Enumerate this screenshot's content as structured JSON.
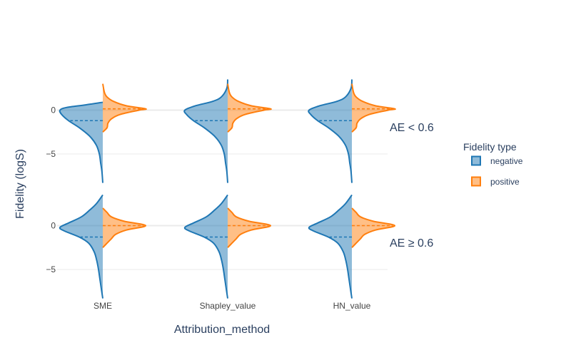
{
  "chart_data": {
    "type": "violin",
    "xlabel": "Attribution_method",
    "ylabel": "Fidelity (logS)",
    "categories": [
      "SME",
      "Shapley_value",
      "HN_value"
    ],
    "facets": [
      "AE < 0.6",
      "AE ≥ 0.6"
    ],
    "yticks": [
      0,
      -5
    ],
    "ylim": [
      -8.5,
      3.5
    ],
    "legend": {
      "title": "Fidelity type",
      "position": "right",
      "items": [
        {
          "name": "negative",
          "color": "#1f77b4",
          "side": "left"
        },
        {
          "name": "positive",
          "color": "#ff7f0e",
          "side": "right"
        }
      ]
    },
    "violins": [
      {
        "facet": "AE < 0.6",
        "category": "SME",
        "negative": {
          "mean": -1.2,
          "range": [
            -8.3,
            0.9
          ],
          "profile": [
            [
              -8.3,
              0.0
            ],
            [
              -7.0,
              0.02
            ],
            [
              -6.0,
              0.05
            ],
            [
              -5.0,
              0.08
            ],
            [
              -4.0,
              0.15
            ],
            [
              -3.0,
              0.3
            ],
            [
              -2.0,
              0.55
            ],
            [
              -1.2,
              0.8
            ],
            [
              -0.5,
              0.96
            ],
            [
              0.0,
              1.0
            ],
            [
              0.3,
              0.85
            ],
            [
              0.6,
              0.4
            ],
            [
              0.9,
              0.0
            ]
          ]
        },
        "positive": {
          "mean": 0.15,
          "range": [
            -2.5,
            3.0
          ],
          "profile": [
            [
              -2.5,
              0.0
            ],
            [
              -2.0,
              0.1
            ],
            [
              -1.5,
              0.12
            ],
            [
              -1.0,
              0.2
            ],
            [
              -0.5,
              0.4
            ],
            [
              0.0,
              0.85
            ],
            [
              0.15,
              1.0
            ],
            [
              0.5,
              0.55
            ],
            [
              1.0,
              0.25
            ],
            [
              1.5,
              0.1
            ],
            [
              2.0,
              0.04
            ],
            [
              3.0,
              0.0
            ]
          ]
        }
      },
      {
        "facet": "AE < 0.6",
        "category": "Shapley_value",
        "negative": {
          "mean": -1.2,
          "range": [
            -8.3,
            3.5
          ],
          "profile": [
            [
              -8.3,
              0.0
            ],
            [
              -7.0,
              0.02
            ],
            [
              -6.0,
              0.05
            ],
            [
              -5.0,
              0.08
            ],
            [
              -4.0,
              0.15
            ],
            [
              -3.0,
              0.3
            ],
            [
              -2.0,
              0.55
            ],
            [
              -1.2,
              0.8
            ],
            [
              -0.5,
              0.96
            ],
            [
              0.0,
              1.0
            ],
            [
              0.5,
              0.75
            ],
            [
              1.0,
              0.35
            ],
            [
              1.5,
              0.15
            ],
            [
              2.5,
              0.02
            ],
            [
              3.5,
              0.0
            ]
          ]
        },
        "positive": {
          "mean": 0.15,
          "range": [
            -2.5,
            3.0
          ],
          "profile": [
            [
              -2.5,
              0.0
            ],
            [
              -2.0,
              0.1
            ],
            [
              -1.5,
              0.12
            ],
            [
              -1.0,
              0.2
            ],
            [
              -0.5,
              0.4
            ],
            [
              0.0,
              0.85
            ],
            [
              0.15,
              1.0
            ],
            [
              0.5,
              0.55
            ],
            [
              1.0,
              0.25
            ],
            [
              1.5,
              0.1
            ],
            [
              2.0,
              0.04
            ],
            [
              3.0,
              0.0
            ]
          ]
        }
      },
      {
        "facet": "AE < 0.6",
        "category": "HN_value",
        "negative": {
          "mean": -1.2,
          "range": [
            -8.3,
            3.5
          ],
          "profile": [
            [
              -8.3,
              0.0
            ],
            [
              -7.0,
              0.02
            ],
            [
              -6.0,
              0.05
            ],
            [
              -5.0,
              0.08
            ],
            [
              -4.0,
              0.15
            ],
            [
              -3.0,
              0.3
            ],
            [
              -2.0,
              0.55
            ],
            [
              -1.2,
              0.8
            ],
            [
              -0.5,
              0.96
            ],
            [
              0.0,
              1.0
            ],
            [
              0.5,
              0.75
            ],
            [
              1.0,
              0.35
            ],
            [
              1.5,
              0.15
            ],
            [
              2.5,
              0.02
            ],
            [
              3.5,
              0.0
            ]
          ]
        },
        "positive": {
          "mean": 0.15,
          "range": [
            -2.5,
            3.0
          ],
          "profile": [
            [
              -2.5,
              0.0
            ],
            [
              -2.0,
              0.1
            ],
            [
              -1.5,
              0.12
            ],
            [
              -1.0,
              0.2
            ],
            [
              -0.5,
              0.4
            ],
            [
              0.0,
              0.85
            ],
            [
              0.15,
              1.0
            ],
            [
              0.5,
              0.55
            ],
            [
              1.0,
              0.25
            ],
            [
              1.5,
              0.1
            ],
            [
              2.0,
              0.04
            ],
            [
              3.0,
              0.0
            ]
          ]
        }
      },
      {
        "facet": "AE ≥ 0.6",
        "category": "SME",
        "negative": {
          "mean": -1.3,
          "range": [
            -8.3,
            3.5
          ],
          "profile": [
            [
              -8.3,
              0.0
            ],
            [
              -7.0,
              0.04
            ],
            [
              -6.0,
              0.07
            ],
            [
              -5.0,
              0.1
            ],
            [
              -4.0,
              0.14
            ],
            [
              -3.0,
              0.2
            ],
            [
              -2.0,
              0.33
            ],
            [
              -1.3,
              0.55
            ],
            [
              -0.6,
              0.9
            ],
            [
              -0.2,
              1.0
            ],
            [
              0.3,
              0.8
            ],
            [
              1.0,
              0.5
            ],
            [
              1.8,
              0.3
            ],
            [
              2.5,
              0.15
            ],
            [
              3.5,
              0.0
            ]
          ]
        },
        "positive": {
          "mean": 0.0,
          "range": [
            -2.5,
            2.0
          ],
          "profile": [
            [
              -2.5,
              0.0
            ],
            [
              -2.0,
              0.1
            ],
            [
              -1.5,
              0.2
            ],
            [
              -1.0,
              0.3
            ],
            [
              -0.5,
              0.55
            ],
            [
              0.0,
              1.0
            ],
            [
              0.5,
              0.5
            ],
            [
              1.0,
              0.2
            ],
            [
              1.5,
              0.1
            ],
            [
              2.0,
              0.0
            ]
          ]
        }
      },
      {
        "facet": "AE ≥ 0.6",
        "category": "Shapley_value",
        "negative": {
          "mean": -1.3,
          "range": [
            -8.3,
            3.5
          ],
          "profile": [
            [
              -8.3,
              0.0
            ],
            [
              -7.0,
              0.04
            ],
            [
              -6.0,
              0.07
            ],
            [
              -5.0,
              0.1
            ],
            [
              -4.0,
              0.14
            ],
            [
              -3.0,
              0.2
            ],
            [
              -2.0,
              0.33
            ],
            [
              -1.3,
              0.55
            ],
            [
              -0.6,
              0.9
            ],
            [
              -0.2,
              1.0
            ],
            [
              0.3,
              0.8
            ],
            [
              1.0,
              0.5
            ],
            [
              1.8,
              0.3
            ],
            [
              2.5,
              0.15
            ],
            [
              3.5,
              0.0
            ]
          ]
        },
        "positive": {
          "mean": 0.0,
          "range": [
            -2.5,
            2.0
          ],
          "profile": [
            [
              -2.5,
              0.0
            ],
            [
              -2.0,
              0.1
            ],
            [
              -1.5,
              0.2
            ],
            [
              -1.0,
              0.3
            ],
            [
              -0.5,
              0.55
            ],
            [
              0.0,
              1.0
            ],
            [
              0.5,
              0.5
            ],
            [
              1.0,
              0.2
            ],
            [
              1.5,
              0.1
            ],
            [
              2.0,
              0.0
            ]
          ]
        }
      },
      {
        "facet": "AE ≥ 0.6",
        "category": "HN_value",
        "negative": {
          "mean": -1.3,
          "range": [
            -8.3,
            3.5
          ],
          "profile": [
            [
              -8.3,
              0.0
            ],
            [
              -7.0,
              0.04
            ],
            [
              -6.0,
              0.07
            ],
            [
              -5.0,
              0.1
            ],
            [
              -4.0,
              0.14
            ],
            [
              -3.0,
              0.2
            ],
            [
              -2.0,
              0.33
            ],
            [
              -1.3,
              0.55
            ],
            [
              -0.6,
              0.9
            ],
            [
              -0.2,
              1.0
            ],
            [
              0.3,
              0.8
            ],
            [
              1.0,
              0.5
            ],
            [
              1.8,
              0.3
            ],
            [
              2.5,
              0.15
            ],
            [
              3.5,
              0.0
            ]
          ]
        },
        "positive": {
          "mean": 0.0,
          "range": [
            -2.5,
            2.0
          ],
          "profile": [
            [
              -2.5,
              0.0
            ],
            [
              -2.0,
              0.1
            ],
            [
              -1.5,
              0.2
            ],
            [
              -1.0,
              0.3
            ],
            [
              -0.5,
              0.55
            ],
            [
              0.0,
              1.0
            ],
            [
              0.5,
              0.5
            ],
            [
              1.0,
              0.2
            ],
            [
              1.5,
              0.1
            ],
            [
              2.0,
              0.0
            ]
          ]
        }
      }
    ]
  }
}
